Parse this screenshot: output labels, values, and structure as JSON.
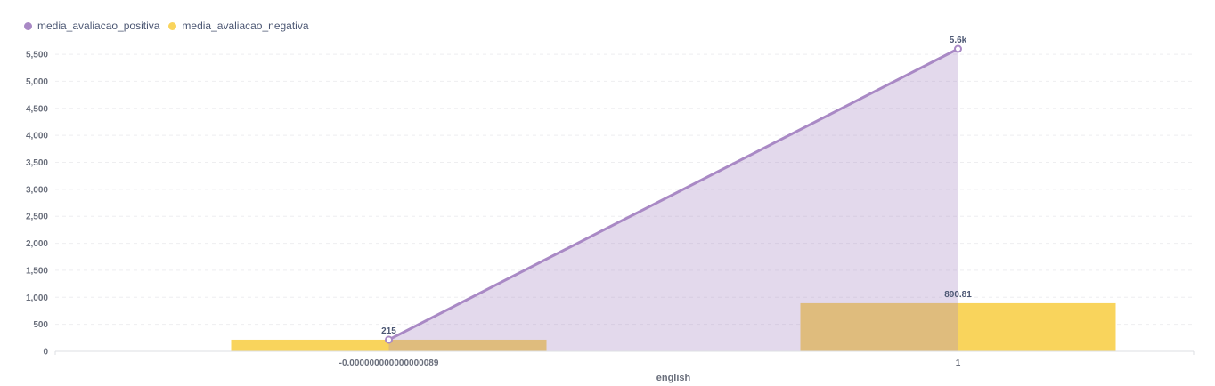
{
  "legend": {
    "series": [
      {
        "name": "media_avaliacao_positiva",
        "color": "#a989c5"
      },
      {
        "name": "media_avaliacao_negativa",
        "color": "#f9d45c"
      }
    ]
  },
  "chart_data": {
    "type": "bar",
    "title": "",
    "xlabel": "english",
    "ylabel": "",
    "categories": [
      "-0.000000000000000089",
      "1"
    ],
    "ylim": [
      0,
      5600
    ],
    "yticks": [
      0,
      500,
      1000,
      1500,
      2000,
      2500,
      3000,
      3500,
      4000,
      4500,
      5000,
      5500
    ],
    "ytick_labels": [
      "0",
      "500",
      "1,000",
      "1,500",
      "2,000",
      "2,500",
      "3,000",
      "3,500",
      "4,000",
      "4,500",
      "5,000",
      "5,500"
    ],
    "grid": true,
    "legend_position": "top-left",
    "series": [
      {
        "name": "media_avaliacao_positiva",
        "kind": "area-line",
        "color": "#a989c5",
        "values": [
          215,
          5600
        ],
        "labels": [
          "215",
          "5.6k"
        ]
      },
      {
        "name": "media_avaliacao_negativa",
        "kind": "bar",
        "color": "#f9d45c",
        "values": [
          215,
          890.81
        ],
        "labels": [
          "",
          "890.81"
        ]
      }
    ]
  }
}
